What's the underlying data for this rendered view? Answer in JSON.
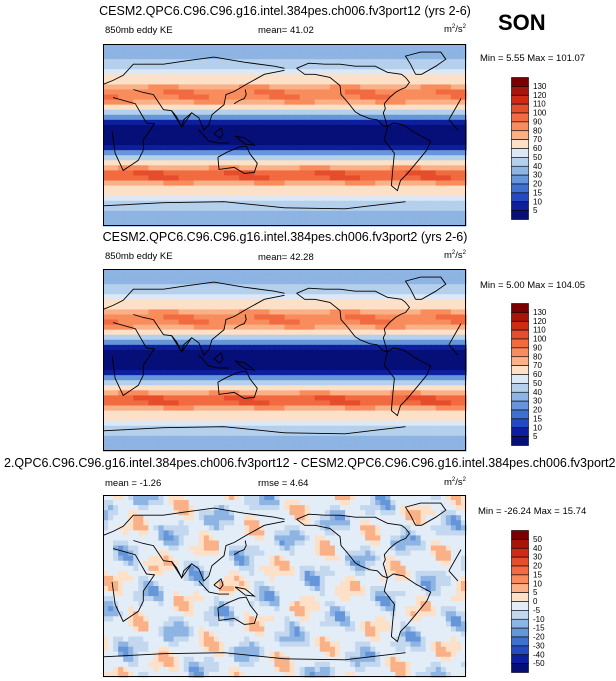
{
  "season": "SON",
  "panels": [
    {
      "title": "CESM2.QPC6.C96.C96.g16.intel.384pes.ch006.fv3port12 (yrs 2-6)",
      "variable": "850mb eddy KE",
      "stat_text": "mean=  41.02",
      "units_base": "m",
      "units_sup1": "2",
      "units_mid": "/s",
      "units_sup2": "2",
      "minmax": "Min =  5.55 Max = 101.07",
      "field": "ke",
      "colorbar_labels": [
        "130",
        "120",
        "110",
        "100",
        "90",
        "80",
        "70",
        "60",
        "50",
        "40",
        "30",
        "20",
        "15",
        "10",
        "5"
      ]
    },
    {
      "title": "CESM2.QPC6.C96.C96.g16.intel.384pes.ch006.fv3port2 (yrs 2-6)",
      "variable": "850mb eddy KE",
      "stat_text": "mean=  42.28",
      "units_base": "m",
      "units_sup1": "2",
      "units_mid": "/s",
      "units_sup2": "2",
      "minmax": "Min =  5.00 Max = 104.05",
      "field": "ke",
      "colorbar_labels": [
        "130",
        "120",
        "110",
        "100",
        "90",
        "80",
        "70",
        "60",
        "50",
        "40",
        "30",
        "20",
        "15",
        "10",
        "5"
      ]
    },
    {
      "title": "2.QPC6.C96.C96.g16.intel.384pes.ch006.fv3port12 - CESM2.QPC6.C96.C96.g16.intel.384pes.ch006.fv3port2",
      "variable": "mean =  -1.26",
      "stat_text": "rmse =   4.64",
      "units_base": "m",
      "units_sup1": "2",
      "units_mid": "/s",
      "units_sup2": "2",
      "minmax": "Min = -26.24 Max =  15.74",
      "field": "diff",
      "colorbar_labels": [
        "50",
        "40",
        "30",
        "20",
        "15",
        "10",
        "5",
        "0",
        "-5",
        "-10",
        "-15",
        "-20",
        "-30",
        "-40",
        "-50"
      ]
    }
  ],
  "colors": {
    "ke": [
      "#7a0000",
      "#a8140a",
      "#cf2a14",
      "#e64d2c",
      "#f26a40",
      "#f88c5c",
      "#fbb187",
      "#fde0c8",
      "#dce8f5",
      "#b5d0ec",
      "#8db4e2",
      "#6596d9",
      "#3f70d0",
      "#2449c0",
      "#0d1e9e",
      "#060e78"
    ],
    "diff": [
      "#7a0000",
      "#a8140a",
      "#cf2a14",
      "#e64d2c",
      "#f26a40",
      "#f88c5c",
      "#fbb187",
      "#fde0c8",
      "#e3edf8",
      "#c3d8ef",
      "#8db4e2",
      "#6596d9",
      "#3f70d0",
      "#2449c0",
      "#0d1e9e",
      "#060e78"
    ],
    "coast": "#000000"
  }
}
